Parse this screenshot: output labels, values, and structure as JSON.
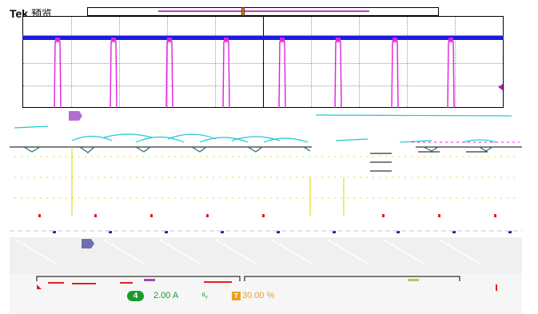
{
  "header": {
    "brand": "Tek",
    "mode": "预览"
  },
  "trigger": {
    "glyph": "T"
  },
  "status_bar": {
    "channel_number": "4",
    "channel_scale": "2.00 A",
    "bandwidth_icon": "bandwidth-limit-icon",
    "trigger_level": "30.00 %"
  },
  "colors": {
    "ch1": "#1a1ae0",
    "ch2": "#e020e0",
    "ch3": "#20c8d0",
    "ch4": "#e0e020",
    "trigger": "#f0a020",
    "grid": "#999999"
  }
}
